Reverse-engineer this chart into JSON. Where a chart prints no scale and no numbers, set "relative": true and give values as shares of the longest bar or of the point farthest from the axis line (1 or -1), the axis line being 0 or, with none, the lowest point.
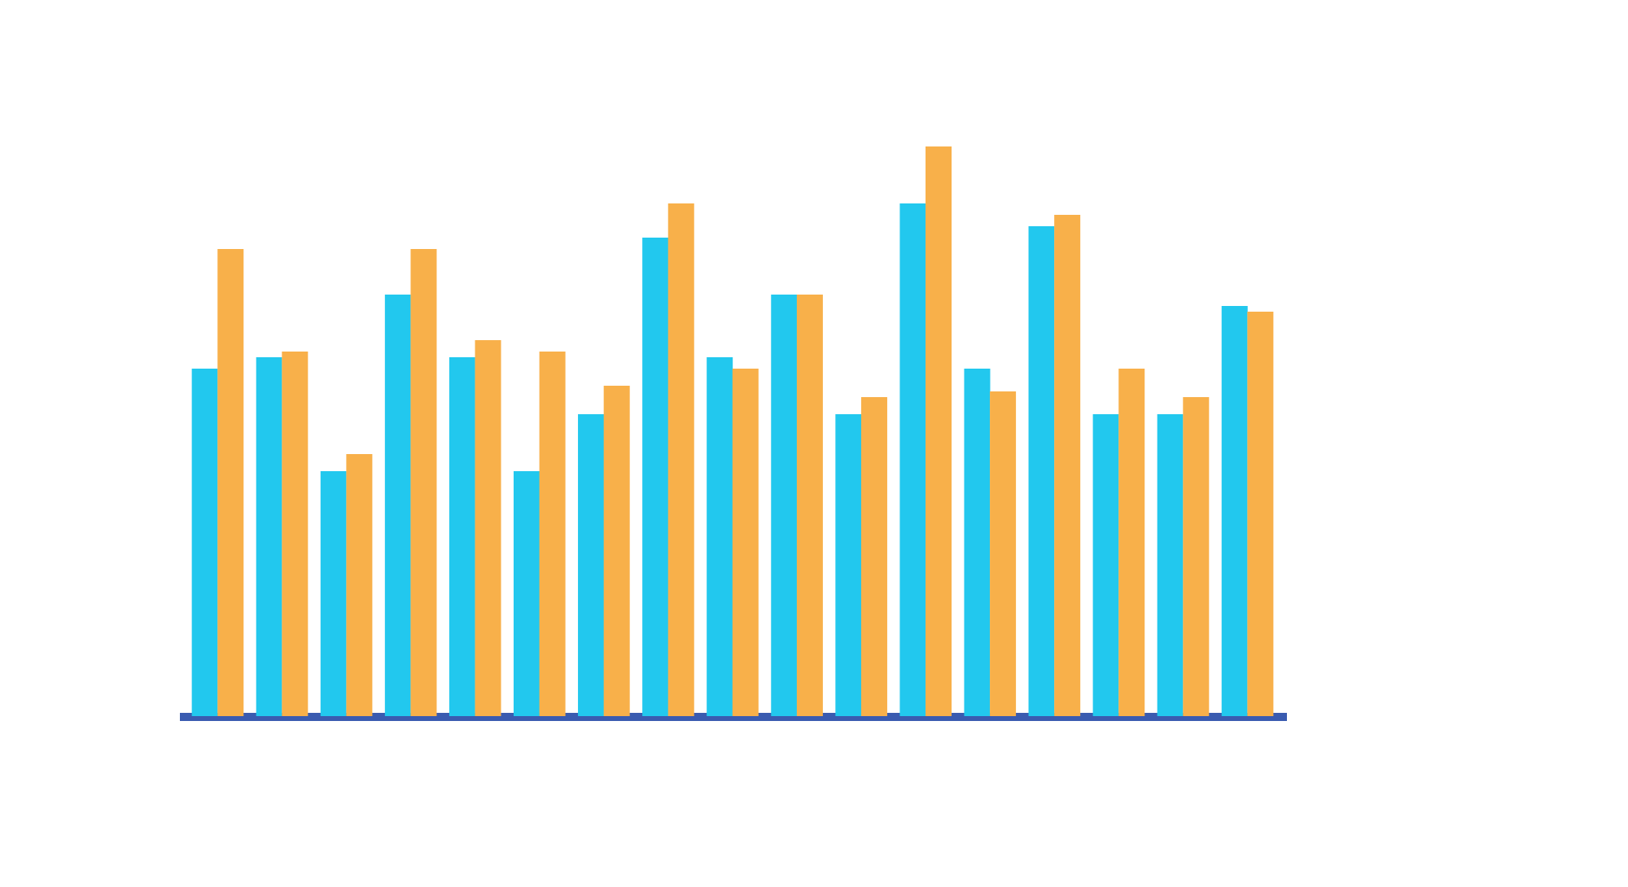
{
  "chart_data": {
    "type": "bar",
    "relative": true,
    "legend": false,
    "categories": [
      null,
      null,
      null,
      null,
      null,
      null,
      null,
      null,
      null,
      null,
      null,
      null,
      null,
      null,
      null,
      null,
      null
    ],
    "series": [
      {
        "color": "#22c8ee",
        "values": [
          0.61,
          0.63,
          0.43,
          0.74,
          0.63,
          0.43,
          0.53,
          0.84,
          0.63,
          0.74,
          0.53,
          0.9,
          0.61,
          0.86,
          0.53,
          0.53,
          0.72
        ]
      },
      {
        "color": "#f8b04a",
        "values": [
          0.82,
          0.64,
          0.46,
          0.82,
          0.66,
          0.64,
          0.58,
          0.9,
          0.61,
          0.74,
          0.56,
          1.0,
          0.57,
          0.88,
          0.61,
          0.56,
          0.71
        ]
      }
    ]
  }
}
